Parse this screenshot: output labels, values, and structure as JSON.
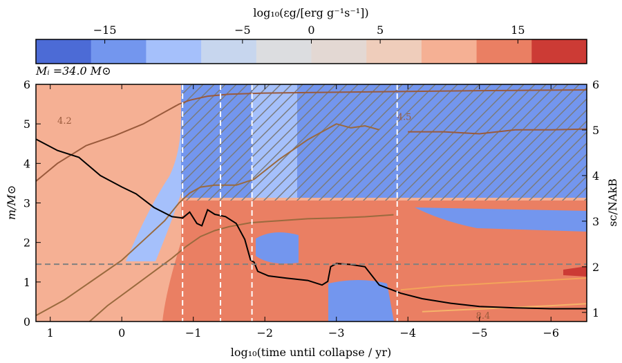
{
  "chart_data": {
    "type": "heatmap",
    "colorbar": {
      "label": "log₁₀(εg/[erg g⁻¹s⁻¹])",
      "ticks": [
        -15,
        -5,
        0,
        5,
        15
      ],
      "tick_labels": [
        "−15",
        "−5",
        "0",
        "5",
        "15"
      ],
      "range": [
        -20,
        20
      ],
      "levels": 10,
      "colors": [
        "#4c6bd6",
        "#7396ee",
        "#a5c0fb",
        "#c7d6ee",
        "#dcdde0",
        "#e3d8d3",
        "#efcdbb",
        "#f5b094",
        "#ea7f63",
        "#cc3b35"
      ]
    },
    "annotation": "Mᵢ =34.0 M⊙",
    "xlabel": "log₁₀(time until collapse / yr)",
    "xlim": [
      1.2,
      -6.5
    ],
    "xticks": [
      1,
      0,
      -1,
      -2,
      -3,
      -4,
      -5,
      -6
    ],
    "xtick_labels": [
      "1",
      "0",
      "−1",
      "−2",
      "−3",
      "−4",
      "−5",
      "−6"
    ],
    "ylabel": "m/M⊙",
    "ylim": [
      0,
      6
    ],
    "yticks": [
      0,
      1,
      2,
      3,
      4,
      5,
      6
    ],
    "ylabel_right": "sc/NAkB",
    "y2lim": [
      0.8,
      6
    ],
    "y2ticks": [
      1,
      2,
      3,
      4,
      5,
      6
    ],
    "vlines_dashed": [
      -0.85,
      -1.38,
      -1.82,
      -3.85
    ],
    "hline_dashed": 1.45,
    "contour_labels": [
      {
        "text": "4.2",
        "x": 0.8,
        "y": 5.0
      },
      {
        "text": "4.5",
        "x": -3.95,
        "y": 5.1
      },
      {
        "text": "8.4",
        "x": -5.05,
        "y": 0.07
      }
    ],
    "central_entropy": {
      "x": [
        1.2,
        0.9,
        0.6,
        0.3,
        0.0,
        -0.2,
        -0.45,
        -0.7,
        -0.85,
        -0.95,
        -1.05,
        -1.12,
        -1.2,
        -1.3,
        -1.45,
        -1.6,
        -1.72,
        -1.8,
        -1.85,
        -1.9,
        -2.05,
        -2.3,
        -2.6,
        -2.8,
        -2.88,
        -2.92,
        -3.0,
        -3.2,
        -3.4,
        -3.6,
        -3.9,
        -4.2,
        -4.6,
        -5.0,
        -5.5,
        -6.0,
        -6.5
      ],
      "y": [
        4.8,
        4.55,
        4.4,
        4.0,
        3.75,
        3.6,
        3.3,
        3.1,
        3.07,
        3.2,
        2.95,
        2.9,
        3.25,
        3.15,
        3.1,
        2.95,
        2.6,
        2.15,
        2.1,
        1.9,
        1.8,
        1.75,
        1.7,
        1.6,
        1.68,
        2.0,
        2.07,
        2.05,
        2.0,
        1.6,
        1.42,
        1.3,
        1.2,
        1.13,
        1.1,
        1.08,
        1.08
      ]
    },
    "series": [
      {
        "name": "",
        "x": [
          1.2,
          0.9,
          0.5,
          0.1,
          -0.3,
          -0.6,
          -0.8,
          -0.95,
          -1.2,
          -1.5,
          -2.0,
          -3.0,
          -4.0,
          -5.0,
          -6.5
        ],
        "y": [
          3.55,
          4.0,
          4.45,
          4.7,
          5.0,
          5.3,
          5.5,
          5.6,
          5.7,
          5.75,
          5.78,
          5.8,
          5.82,
          5.84,
          5.86
        ]
      },
      {
        "name": "",
        "x": [
          1.2,
          0.8,
          0.4,
          0.0,
          -0.3,
          -0.6,
          -0.8,
          -0.95,
          -1.1,
          -1.3,
          -1.6,
          -1.85,
          -2.2,
          -2.6,
          -3.0,
          -3.2,
          -3.4,
          -3.6
        ],
        "y": [
          0.15,
          0.55,
          1.05,
          1.55,
          2.05,
          2.55,
          3.0,
          3.25,
          3.4,
          3.45,
          3.45,
          3.6,
          4.1,
          4.6,
          5.0,
          4.9,
          4.95,
          4.85
        ]
      },
      {
        "name": "",
        "x": [
          -4.0,
          -4.5,
          -5.0,
          -5.5,
          -6.0,
          -6.5
        ],
        "y": [
          4.8,
          4.8,
          4.75,
          4.85,
          4.85,
          4.87
        ]
      },
      {
        "name": "",
        "x": [
          0.45,
          0.2,
          -0.1,
          -0.4,
          -0.7,
          -0.9,
          -1.1,
          -1.3,
          -1.5,
          -1.8,
          -2.2,
          -2.6,
          -3.0,
          -3.4,
          -3.8
        ],
        "y": [
          0.0,
          0.4,
          0.8,
          1.2,
          1.6,
          1.9,
          2.15,
          2.3,
          2.4,
          2.5,
          2.55,
          2.6,
          2.62,
          2.65,
          2.7
        ]
      },
      {
        "name": "",
        "x": [
          -3.9,
          -4.5,
          -5.0,
          -5.5,
          -6.0,
          -6.5
        ],
        "y": [
          0.8,
          0.9,
          0.95,
          1.0,
          1.05,
          1.1
        ]
      },
      {
        "name": "",
        "x": [
          -4.2,
          -4.8,
          -5.4,
          -6.0,
          -6.5
        ],
        "y": [
          0.25,
          0.3,
          0.35,
          0.4,
          0.45
        ]
      }
    ]
  }
}
